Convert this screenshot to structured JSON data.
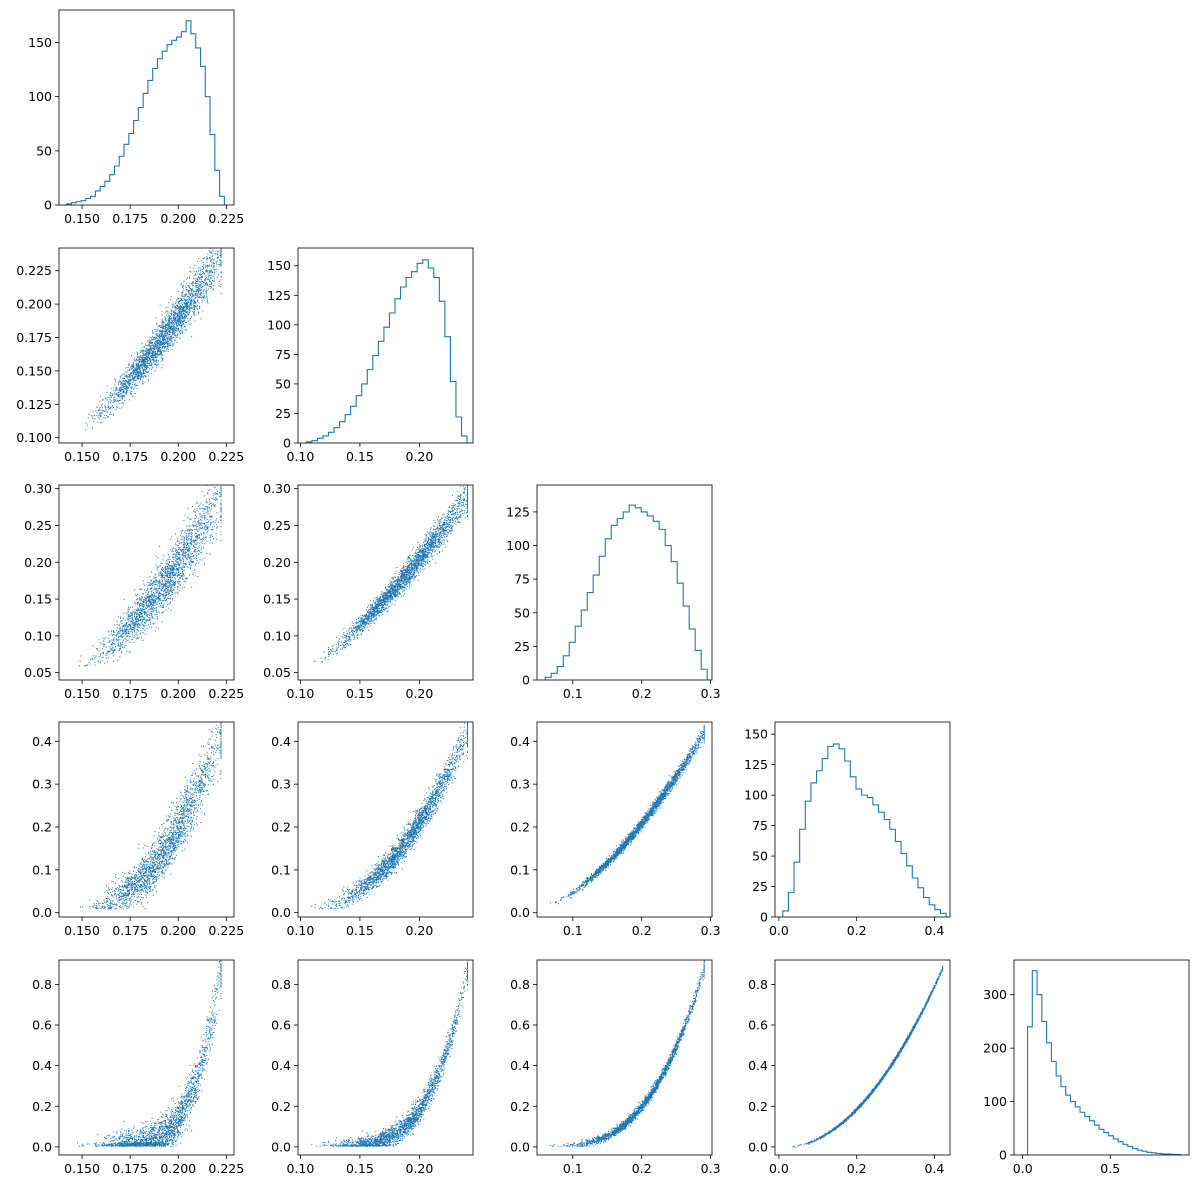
{
  "chart_data": [
    {
      "type": "histogram",
      "row": 0,
      "col": 0,
      "xlim": [
        0.138,
        0.229
      ],
      "ylim": [
        0,
        180
      ],
      "xticks": [
        0.15,
        0.175,
        0.2,
        0.225
      ],
      "xtick_labels": [
        "0.150",
        "0.175",
        "0.200",
        "0.225"
      ],
      "yticks": [
        0,
        50,
        100,
        150
      ],
      "ytick_labels": [
        "0",
        "50",
        "100",
        "150"
      ],
      "bins_range": [
        0.142,
        0.224
      ],
      "counts": [
        1,
        2,
        3,
        4,
        6,
        8,
        13,
        17,
        22,
        28,
        36,
        45,
        56,
        66,
        78,
        90,
        103,
        115,
        126,
        135,
        142,
        148,
        152,
        155,
        160,
        170,
        158,
        145,
        128,
        100,
        65,
        32,
        8
      ]
    },
    {
      "type": "scatter",
      "row": 1,
      "col": 0,
      "xlim": [
        0.138,
        0.229
      ],
      "ylim": [
        0.096,
        0.242
      ],
      "xticks": [
        0.15,
        0.175,
        0.2,
        0.225
      ],
      "xtick_labels": [
        "0.150",
        "0.175",
        "0.200",
        "0.225"
      ],
      "yticks": [
        0.1,
        0.125,
        0.15,
        0.175,
        0.2,
        0.225
      ],
      "ytick_labels": [
        "0.100",
        "0.125",
        "0.150",
        "0.175",
        "0.200",
        "0.225"
      ],
      "x_range": [
        0.145,
        0.222
      ],
      "y_range": [
        0.105,
        0.238
      ],
      "power": 1.3,
      "spread": 0.022,
      "n_points": 2600
    },
    {
      "type": "histogram",
      "row": 1,
      "col": 1,
      "xlim": [
        0.098,
        0.245
      ],
      "ylim": [
        0,
        165
      ],
      "xticks": [
        0.1,
        0.15,
        0.2
      ],
      "xtick_labels": [
        "0.10",
        "0.15",
        "0.20"
      ],
      "yticks": [
        0,
        25,
        50,
        75,
        100,
        125,
        150
      ],
      "ytick_labels": [
        "0",
        "25",
        "50",
        "75",
        "100",
        "125",
        "150"
      ],
      "bins_range": [
        0.105,
        0.24
      ],
      "counts": [
        1,
        2,
        4,
        6,
        9,
        13,
        18,
        24,
        31,
        40,
        50,
        62,
        74,
        86,
        98,
        110,
        122,
        132,
        140,
        145,
        152,
        155,
        148,
        140,
        120,
        90,
        52,
        22,
        6
      ]
    },
    {
      "type": "scatter",
      "row": 2,
      "col": 0,
      "xlim": [
        0.138,
        0.229
      ],
      "ylim": [
        0.04,
        0.305
      ],
      "xticks": [
        0.15,
        0.175,
        0.2,
        0.225
      ],
      "xtick_labels": [
        "0.150",
        "0.175",
        "0.200",
        "0.225"
      ],
      "yticks": [
        0.05,
        0.1,
        0.15,
        0.2,
        0.25,
        0.3
      ],
      "ytick_labels": [
        "0.05",
        "0.10",
        "0.15",
        "0.20",
        "0.25",
        "0.30"
      ],
      "x_range": [
        0.145,
        0.222
      ],
      "y_range": [
        0.06,
        0.29
      ],
      "power": 1.5,
      "spread": 0.05,
      "n_points": 2600
    },
    {
      "type": "scatter",
      "row": 2,
      "col": 1,
      "xlim": [
        0.098,
        0.245
      ],
      "ylim": [
        0.04,
        0.305
      ],
      "xticks": [
        0.1,
        0.15,
        0.2
      ],
      "xtick_labels": [
        "0.10",
        "0.15",
        "0.20"
      ],
      "yticks": [
        0.05,
        0.1,
        0.15,
        0.2,
        0.25,
        0.3
      ],
      "ytick_labels": [
        "0.05",
        "0.10",
        "0.15",
        "0.20",
        "0.25",
        "0.30"
      ],
      "x_range": [
        0.105,
        0.24
      ],
      "y_range": [
        0.06,
        0.29
      ],
      "power": 1.3,
      "spread": 0.025,
      "n_points": 2600
    },
    {
      "type": "histogram",
      "row": 2,
      "col": 2,
      "xlim": [
        0.048,
        0.302
      ],
      "ylim": [
        0,
        145
      ],
      "xticks": [
        0.1,
        0.2,
        0.3
      ],
      "xtick_labels": [
        "0.1",
        "0.2",
        "0.3"
      ],
      "yticks": [
        0,
        25,
        50,
        75,
        100,
        125
      ],
      "ytick_labels": [
        "0",
        "25",
        "50",
        "75",
        "100",
        "125"
      ],
      "bins_range": [
        0.06,
        0.295
      ],
      "counts": [
        2,
        5,
        10,
        18,
        28,
        40,
        52,
        65,
        78,
        92,
        105,
        115,
        120,
        125,
        130,
        128,
        125,
        122,
        118,
        112,
        100,
        88,
        72,
        55,
        38,
        22,
        8
      ]
    },
    {
      "type": "scatter",
      "row": 3,
      "col": 0,
      "xlim": [
        0.138,
        0.229
      ],
      "ylim": [
        -0.01,
        0.445
      ],
      "xticks": [
        0.15,
        0.175,
        0.2,
        0.225
      ],
      "xtick_labels": [
        "0.150",
        "0.175",
        "0.200",
        "0.225"
      ],
      "yticks": [
        0.0,
        0.1,
        0.2,
        0.3,
        0.4
      ],
      "ytick_labels": [
        "0.0",
        "0.1",
        "0.2",
        "0.3",
        "0.4"
      ],
      "x_range": [
        0.145,
        0.222
      ],
      "y_range": [
        0.01,
        0.42
      ],
      "power": 2.3,
      "spread": 0.085,
      "n_points": 2600
    },
    {
      "type": "scatter",
      "row": 3,
      "col": 1,
      "xlim": [
        0.098,
        0.245
      ],
      "ylim": [
        -0.01,
        0.445
      ],
      "xticks": [
        0.1,
        0.15,
        0.2
      ],
      "xtick_labels": [
        "0.10",
        "0.15",
        "0.20"
      ],
      "yticks": [
        0.0,
        0.1,
        0.2,
        0.3,
        0.4
      ],
      "ytick_labels": [
        "0.0",
        "0.1",
        "0.2",
        "0.3",
        "0.4"
      ],
      "x_range": [
        0.105,
        0.24
      ],
      "y_range": [
        0.01,
        0.42
      ],
      "power": 2.0,
      "spread": 0.045,
      "n_points": 2600
    },
    {
      "type": "scatter",
      "row": 3,
      "col": 2,
      "xlim": [
        0.048,
        0.302
      ],
      "ylim": [
        -0.01,
        0.445
      ],
      "xticks": [
        0.1,
        0.2,
        0.3
      ],
      "xtick_labels": [
        "0.1",
        "0.2",
        "0.3"
      ],
      "yticks": [
        0.0,
        0.1,
        0.2,
        0.3,
        0.4
      ],
      "ytick_labels": [
        "0.0",
        "0.1",
        "0.2",
        "0.3",
        "0.4"
      ],
      "x_range": [
        0.06,
        0.29
      ],
      "y_range": [
        0.02,
        0.42
      ],
      "power": 1.5,
      "spread": 0.018,
      "n_points": 2600
    },
    {
      "type": "histogram",
      "row": 3,
      "col": 3,
      "xlim": [
        -0.01,
        0.44
      ],
      "ylim": [
        0,
        160
      ],
      "xticks": [
        0.0,
        0.2,
        0.4
      ],
      "xtick_labels": [
        "0.0",
        "0.2",
        "0.4"
      ],
      "yticks": [
        0,
        25,
        50,
        75,
        100,
        125,
        150
      ],
      "ytick_labels": [
        "0",
        "25",
        "50",
        "75",
        "100",
        "125",
        "150"
      ],
      "bins_range": [
        0.01,
        0.43
      ],
      "counts": [
        5,
        20,
        45,
        72,
        95,
        110,
        120,
        130,
        140,
        142,
        138,
        128,
        115,
        105,
        100,
        98,
        92,
        86,
        80,
        72,
        62,
        52,
        42,
        32,
        24,
        16,
        10,
        6,
        3
      ]
    },
    {
      "type": "scatter",
      "row": 4,
      "col": 0,
      "xlim": [
        0.138,
        0.229
      ],
      "ylim": [
        -0.04,
        0.92
      ],
      "xticks": [
        0.15,
        0.175,
        0.2,
        0.225
      ],
      "xtick_labels": [
        "0.150",
        "0.175",
        "0.200",
        "0.225"
      ],
      "yticks": [
        0.0,
        0.2,
        0.4,
        0.6,
        0.8
      ],
      "ytick_labels": [
        "0.0",
        "0.2",
        "0.4",
        "0.6",
        "0.8"
      ],
      "x_range": [
        0.145,
        0.222
      ],
      "y_range": [
        0.005,
        0.88
      ],
      "power": 5.5,
      "spread": 0.14,
      "n_points": 2600
    },
    {
      "type": "scatter",
      "row": 4,
      "col": 1,
      "xlim": [
        0.098,
        0.245
      ],
      "ylim": [
        -0.04,
        0.92
      ],
      "xticks": [
        0.1,
        0.15,
        0.2
      ],
      "xtick_labels": [
        "0.10",
        "0.15",
        "0.20"
      ],
      "yticks": [
        0.0,
        0.2,
        0.4,
        0.6,
        0.8
      ],
      "ytick_labels": [
        "0.0",
        "0.2",
        "0.4",
        "0.6",
        "0.8"
      ],
      "x_range": [
        0.105,
        0.24
      ],
      "y_range": [
        0.005,
        0.88
      ],
      "power": 4.5,
      "spread": 0.08,
      "n_points": 2600
    },
    {
      "type": "scatter",
      "row": 4,
      "col": 2,
      "xlim": [
        0.048,
        0.302
      ],
      "ylim": [
        -0.04,
        0.92
      ],
      "xticks": [
        0.1,
        0.2,
        0.3
      ],
      "xtick_labels": [
        "0.1",
        "0.2",
        "0.3"
      ],
      "yticks": [
        0.0,
        0.2,
        0.4,
        0.6,
        0.8
      ],
      "ytick_labels": [
        "0.0",
        "0.2",
        "0.4",
        "0.6",
        "0.8"
      ],
      "x_range": [
        0.06,
        0.29
      ],
      "y_range": [
        0.005,
        0.88
      ],
      "power": 3.0,
      "spread": 0.035,
      "n_points": 2600
    },
    {
      "type": "scatter",
      "row": 4,
      "col": 3,
      "xlim": [
        -0.01,
        0.44
      ],
      "ylim": [
        -0.04,
        0.92
      ],
      "xticks": [
        0.0,
        0.2,
        0.4
      ],
      "xtick_labels": [
        "0.0",
        "0.2",
        "0.4"
      ],
      "yticks": [
        0.0,
        0.2,
        0.4,
        0.6,
        0.8
      ],
      "ytick_labels": [
        "0.0",
        "0.2",
        "0.4",
        "0.6",
        "0.8"
      ],
      "x_range": [
        0.01,
        0.42
      ],
      "y_range": [
        0.0,
        0.88
      ],
      "power": 2.0,
      "spread": 0.012,
      "n_points": 2600
    },
    {
      "type": "histogram",
      "row": 4,
      "col": 4,
      "xlim": [
        -0.05,
        0.95
      ],
      "ylim": [
        0,
        365
      ],
      "xticks": [
        0.0,
        0.5
      ],
      "xtick_labels": [
        "0.0",
        "0.5"
      ],
      "yticks": [
        0,
        100,
        200,
        300
      ],
      "ytick_labels": [
        "0",
        "100",
        "200",
        "300"
      ],
      "bins_range": [
        0.0,
        0.9
      ],
      "counts": [
        0,
        240,
        345,
        300,
        250,
        210,
        175,
        148,
        128,
        112,
        100,
        90,
        80,
        72,
        64,
        56,
        48,
        42,
        36,
        30,
        25,
        20,
        16,
        12,
        9,
        7,
        5,
        4,
        3,
        2,
        2,
        1,
        1
      ]
    }
  ],
  "colors": {
    "series": "#1f77b4",
    "axes": "#000000"
  }
}
